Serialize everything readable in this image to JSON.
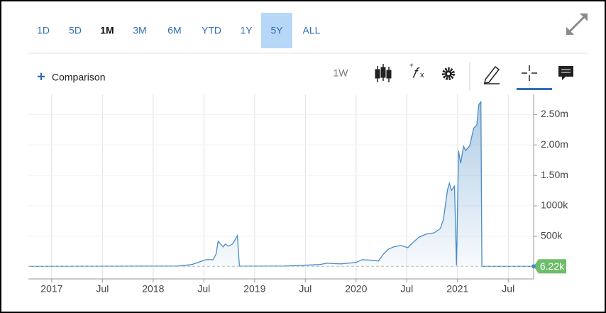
{
  "toolbar": {
    "ranges": [
      "1D",
      "5D",
      "1M",
      "3M",
      "6M",
      "YTD",
      "1Y",
      "5Y",
      "ALL"
    ],
    "bold_range": 2,
    "highlighted_range": 7,
    "comparison": "Comparison",
    "interval": "1W"
  },
  "chart_data": {
    "type": "area",
    "color": "#4a8cc7",
    "x": [
      2016.77,
      2018.24,
      2018.38,
      2018.48,
      2018.52,
      2018.59,
      2018.62,
      2018.64,
      2018.69,
      2018.71,
      2018.74,
      2018.78,
      2018.8,
      2018.83,
      2018.85,
      2019.29,
      2019.64,
      2019.71,
      2019.85,
      2020.0,
      2020.06,
      2020.17,
      2020.22,
      2020.27,
      2020.32,
      2020.37,
      2020.44,
      2020.51,
      2020.56,
      2020.62,
      2020.69,
      2020.77,
      2020.83,
      2020.86,
      2020.9,
      2020.92,
      2020.94,
      2020.97,
      2020.99,
      2021.01,
      2021.03,
      2021.06,
      2021.08,
      2021.12,
      2021.16,
      2021.19,
      2021.21,
      2021.23,
      2021.24,
      2021.73
    ],
    "values": [
      5000,
      12000,
      35000,
      93000,
      116000,
      116000,
      209000,
      419000,
      326000,
      372000,
      337000,
      372000,
      419000,
      512000,
      10000,
      12000,
      35000,
      58000,
      47000,
      70000,
      116000,
      105000,
      93000,
      209000,
      291000,
      326000,
      349000,
      314000,
      395000,
      488000,
      535000,
      558000,
      628000,
      767000,
      1256000,
      1372000,
      1256000,
      1326000,
      23000,
      1907000,
      1698000,
      1977000,
      1907000,
      1988000,
      2279000,
      2326000,
      2663000,
      2709000,
      6000,
      6220
    ],
    "current_value": {
      "value": 6220,
      "label": "6.22k"
    },
    "xlim": [
      2016.77,
      2021.75
    ],
    "xticks": [
      2017,
      {
        "value": 2017.5,
        "label": "Jul"
      },
      2018,
      {
        "value": 2018.5,
        "label": "Jul"
      },
      2019,
      {
        "value": 2019.5,
        "label": "Jul"
      },
      2020,
      {
        "value": 2020.5,
        "label": "Jul"
      },
      2021,
      {
        "value": 2021.5,
        "label": "Jul"
      }
    ],
    "ylim": [
      -200000,
      2830000
    ],
    "yticks": [
      {
        "value": 500000,
        "label": "500k"
      },
      {
        "value": 1000000,
        "label": "1000k"
      },
      {
        "value": 1500000,
        "label": "1.50m"
      },
      {
        "value": 2000000,
        "label": "2.00m"
      },
      {
        "value": 2500000,
        "label": "2.50m"
      }
    ],
    "grid": true
  }
}
